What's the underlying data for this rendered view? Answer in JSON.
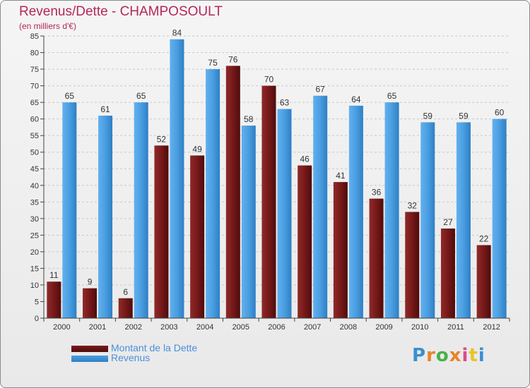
{
  "header": {
    "title": "Revenus/Dette - CHAMPOSOULT",
    "subtitle": "(en milliers d'€)"
  },
  "legend": {
    "items": [
      {
        "label": "Montant de la Dette",
        "color": "#7a1a1a"
      },
      {
        "label": "Revenus",
        "color": "#4a9ee0"
      }
    ]
  },
  "brand": {
    "logo_text": "Proxiti",
    "letter_colors": [
      "#3a8fd0",
      "#e8842a",
      "#4ab04a",
      "#e8842a",
      "#d94b8a",
      "#e8c42a",
      "#3a8fd0"
    ]
  },
  "chart_data": {
    "type": "bar",
    "categories": [
      "2000",
      "2001",
      "2002",
      "2003",
      "2004",
      "2005",
      "2006",
      "2007",
      "2008",
      "2009",
      "2010",
      "2011",
      "2012"
    ],
    "series": [
      {
        "name": "Montant de la Dette",
        "color": "#7a1a1a",
        "values": [
          11,
          9,
          6,
          52,
          49,
          76,
          70,
          46,
          41,
          36,
          32,
          27,
          22
        ]
      },
      {
        "name": "Revenus",
        "color": "#4a9ee0",
        "values": [
          65,
          61,
          65,
          84,
          75,
          58,
          63,
          67,
          64,
          65,
          59,
          59,
          60
        ]
      }
    ],
    "title": "Revenus/Dette - CHAMPOSOULT",
    "ylabel": "(en milliers d'€)",
    "ylim": [
      0,
      85
    ],
    "ytick_step": 5,
    "grid": true
  }
}
